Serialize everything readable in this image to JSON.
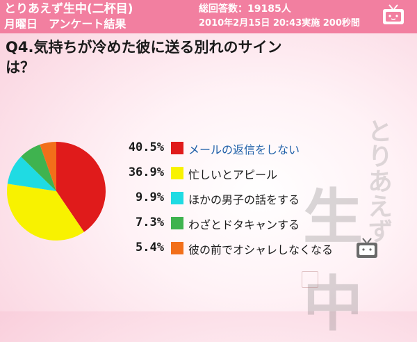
{
  "header": {
    "show_title": "とりあえず生中(二杯目)",
    "weekday": "月曜日　アンケート結果",
    "answers": "総回答数：19185人",
    "datetime": "2010年2月15日 20:43実施 200秒間"
  },
  "question": {
    "line1": "Q4.気持ちが冷めた彼に送る別れのサイン",
    "line2": "は？"
  },
  "watermark": {
    "col1": "とりあえず",
    "col2": "生中",
    "icon": "tv-icon"
  },
  "colors": {
    "header_bg": "#f27fa0",
    "highlight_text": "#1e5fa8"
  },
  "chart_data": {
    "type": "pie",
    "title": "",
    "slices": [
      {
        "label": "メールの返信をしない",
        "value": 40.5,
        "display": "40.5%",
        "color": "#e01b1b"
      },
      {
        "label": "忙しいとアピール",
        "value": 36.9,
        "display": "36.9%",
        "color": "#f8f200"
      },
      {
        "label": "ほかの男子の話をする",
        "value": 9.9,
        "display": "9.9%",
        "color": "#1fdbe3"
      },
      {
        "label": "わざとドタキャンする",
        "value": 7.3,
        "display": "7.3%",
        "color": "#3fb34f"
      },
      {
        "label": "彼の前でオシャレしなくなる",
        "value": 5.4,
        "display": "5.4%",
        "color": "#f26f1a"
      }
    ],
    "start_angle": "12 o'clock",
    "direction": "clockwise",
    "legend_position": "right"
  }
}
